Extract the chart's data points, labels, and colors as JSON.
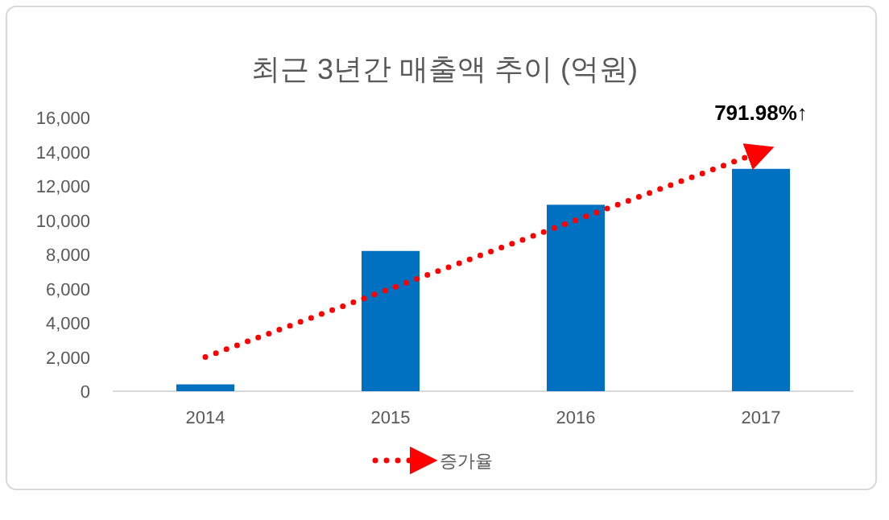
{
  "chart_data": {
    "type": "bar",
    "title": "최근 3년간 매출액 추이 (억원)",
    "categories": [
      "2014",
      "2015",
      "2016",
      "2017"
    ],
    "series": [
      {
        "color": "#0070c0",
        "values": [
          400,
          8200,
          10900,
          13000
        ]
      },
      {
        "name": "증가율",
        "type": "line",
        "color": "#ff0000",
        "values": [
          2000,
          6000,
          10000,
          14000
        ]
      }
    ],
    "ylim": [
      0,
      16000
    ],
    "yticks": [
      0,
      {
        "value": 2000,
        "label": "2,000"
      },
      {
        "value": 4000,
        "label": "4,000"
      },
      {
        "value": 6000,
        "label": "6,000"
      },
      {
        "value": 8000,
        "label": "8,000"
      },
      {
        "value": 10000,
        "label": "10,000"
      },
      {
        "value": 12000,
        "label": "12,000"
      },
      {
        "value": 14000,
        "label": "14,000"
      },
      {
        "value": 16000,
        "label": "16,000"
      }
    ],
    "annotations": [
      {
        "text": "791.98%↑",
        "x": "2017",
        "y": 14000
      }
    ],
    "line_style": "dotted",
    "legend": "bottom",
    "grid": false
  }
}
